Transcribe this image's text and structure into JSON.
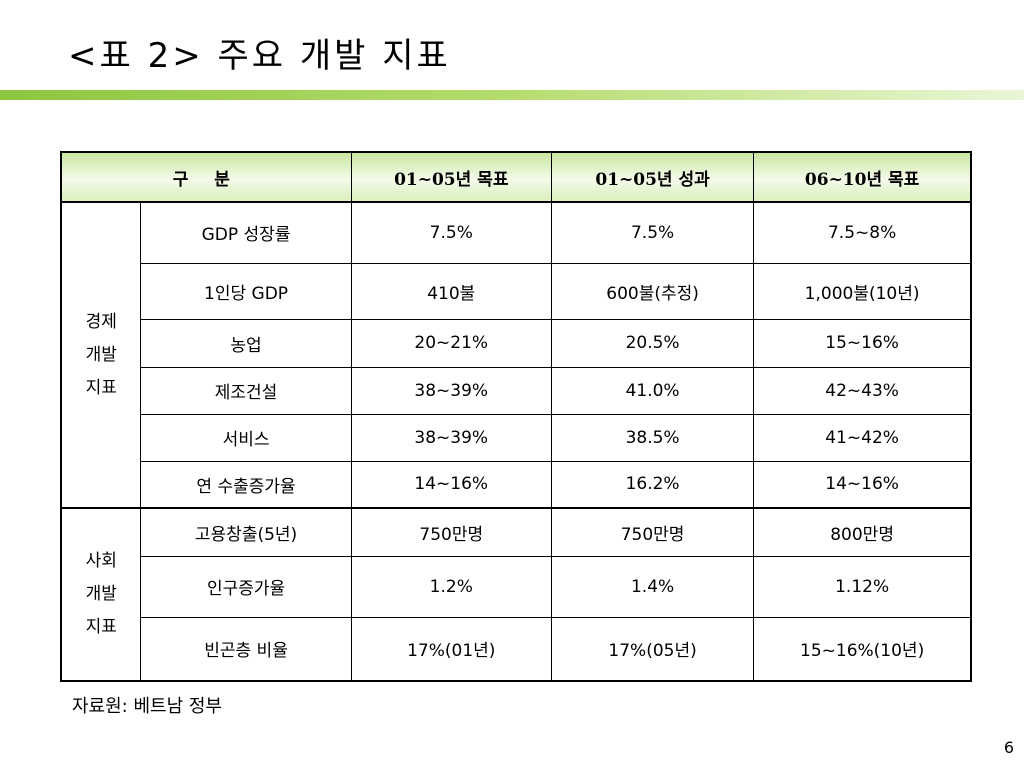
{
  "title": "<표 2> 주요 개발 지표",
  "table": {
    "header": {
      "division": "구 분",
      "col1": "01~05년 목표",
      "col2": "01~05년 성과",
      "col3": "06~10년 목표"
    },
    "groups": [
      {
        "label_lines": [
          "경제",
          "개발",
          "지표"
        ],
        "rows": [
          {
            "indicator": "GDP 성장률",
            "target_01_05": "7.5%",
            "result_01_05": "7.5%",
            "target_06_10": "7.5~8%"
          },
          {
            "indicator": "1인당 GDP",
            "target_01_05": "410불",
            "result_01_05": "600불(추정)",
            "target_06_10": "1,000불(10년)"
          },
          {
            "indicator": "농업",
            "target_01_05": "20~21%",
            "result_01_05": "20.5%",
            "target_06_10": "15~16%"
          },
          {
            "indicator": "제조건설",
            "target_01_05": "38~39%",
            "result_01_05": "41.0%",
            "target_06_10": "42~43%"
          },
          {
            "indicator": "서비스",
            "target_01_05": "38~39%",
            "result_01_05": "38.5%",
            "target_06_10": "41~42%"
          },
          {
            "indicator": "연 수출증가율",
            "target_01_05": "14~16%",
            "result_01_05": "16.2%",
            "target_06_10": "14~16%"
          }
        ]
      },
      {
        "label_lines": [
          "사회",
          "개발",
          "지표"
        ],
        "rows": [
          {
            "indicator": "고용창출(5년)",
            "target_01_05": "750만명",
            "result_01_05": "750만명",
            "target_06_10": "800만명"
          },
          {
            "indicator": "인구증가율",
            "target_01_05": "1.2%",
            "result_01_05": "1.4%",
            "target_06_10": "1.12%"
          },
          {
            "indicator": "빈곤층 비율",
            "target_01_05": "17%(01년)",
            "result_01_05": "17%(05년)",
            "target_06_10": "15~16%(10년)"
          }
        ]
      }
    ]
  },
  "source": "자료원: 베트남 정부",
  "page_number": "6",
  "colors": {
    "accent_bar_start": "#8cc63f",
    "accent_bar_end": "#eaf6d6",
    "header_fill": "#e3f3cc"
  }
}
